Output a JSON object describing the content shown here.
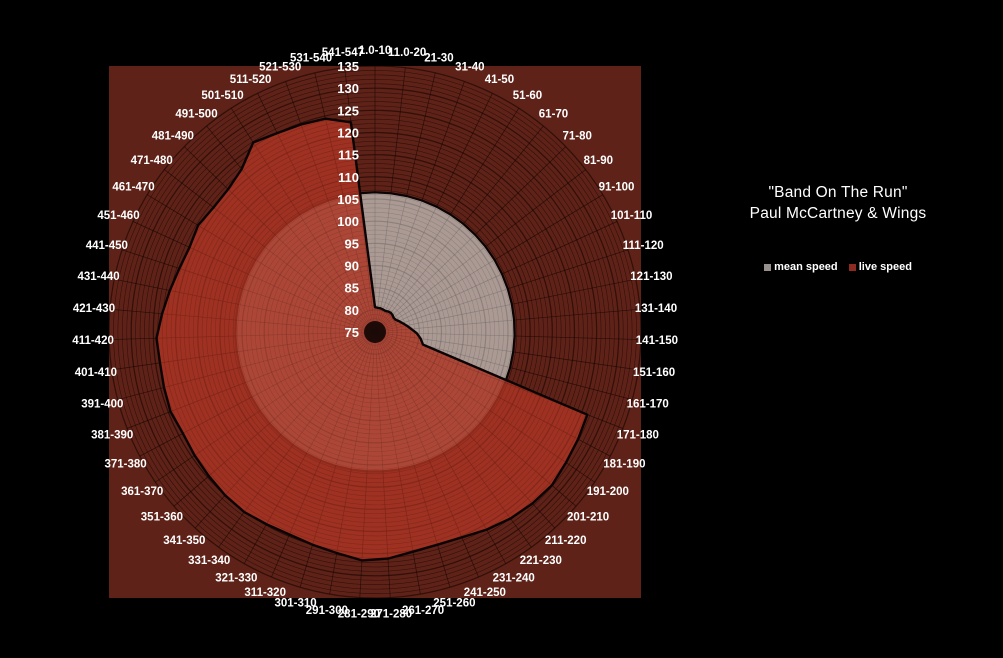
{
  "page": {
    "background": "#000000"
  },
  "title": {
    "line1": "\"Band On The Run\"",
    "line2": "Paul McCartney & Wings"
  },
  "legend": [
    {
      "label": "mean speed",
      "color": "#97908c"
    },
    {
      "label": "live speed",
      "color": "#8e2b20"
    }
  ],
  "chart_data": {
    "type": "polar-area-radar",
    "title": "\"Band On The Run\" Paul McCartney & Wings",
    "angular_axis_units": "beat ranges",
    "angular_start": "top",
    "direction": "clockwise",
    "radial_axis": {
      "min": 75,
      "max": 135,
      "tick_step": 5,
      "ticks": [
        75,
        80,
        85,
        90,
        95,
        100,
        105,
        110,
        115,
        120,
        125,
        130,
        135
      ]
    },
    "grid": {
      "rings_every_unit": true,
      "major_ring_every": 5,
      "spokes": 55
    },
    "legend_position": "right",
    "plot_bg": "#5e2218",
    "categories": [
      "1.0-10",
      "11.0-20",
      "21-30",
      "31-40",
      "41-50",
      "51-60",
      "61-70",
      "71-80",
      "81-90",
      "91-100",
      "101-110",
      "111-120",
      "121-130",
      "131-140",
      "141-150",
      "151-160",
      "161-170",
      "171-180",
      "181-190",
      "191-200",
      "201-210",
      "211-220",
      "221-230",
      "231-240",
      "241-250",
      "251-260",
      "261-270",
      "271-280",
      "281-290",
      "291-300",
      "301-310",
      "311-320",
      "321-330",
      "331-340",
      "341-350",
      "351-360",
      "361-370",
      "371-380",
      "381-390",
      "391-400",
      "401-410",
      "411-420",
      "421-430",
      "431-440",
      "441-450",
      "451-460",
      "461-470",
      "471-480",
      "481-490",
      "491-500",
      "501-510",
      "511-520",
      "521-530",
      "531-540",
      "541-547"
    ],
    "series": [
      {
        "name": "mean speed",
        "fill": "rgba(188,180,176,0.82)",
        "values": [
          106.5,
          106.5,
          106.5,
          106.5,
          106.5,
          106.5,
          106.5,
          106.5,
          106.5,
          106.5,
          106.5,
          106.5,
          106.5,
          106.5,
          106.5,
          106.5,
          106.5,
          106.5,
          106.5,
          106.5,
          106.5,
          106.5,
          106.5,
          106.5,
          106.5,
          106.5,
          106.5,
          106.5,
          106.5,
          106.5,
          106.5,
          106.5,
          106.5,
          106.5,
          106.5,
          106.5,
          106.5,
          106.5,
          106.5,
          106.5,
          106.5,
          106.5,
          106.5,
          106.5,
          106.5,
          106.5,
          106.5,
          106.5,
          106.5,
          106.5,
          106.5,
          106.5,
          106.5,
          106.5,
          106.5
        ]
      },
      {
        "name": "live speed",
        "fill": "rgba(172,52,35,0.82)",
        "values": [
          80.6,
          80.5,
          80.5,
          80.4,
          80.3,
          80.5,
          80.6,
          80.5,
          80.3,
          80.4,
          80.9,
          81.5,
          82.3,
          83.2,
          84.4,
          85.4,
          86.2,
          126.4,
          126.8,
          127.2,
          127.8,
          127.5,
          127.0,
          126.2,
          125.3,
          125.0,
          125.3,
          126.2,
          126.6,
          125.6,
          125.0,
          124.6,
          124.8,
          125.2,
          125.0,
          124.6,
          124.3,
          124.0,
          124.5,
          124.2,
          124.0,
          124.3,
          123.2,
          122.2,
          121.4,
          121.0,
          121.6,
          121.0,
          121.2,
          122.5,
          125.8,
          125.0,
          124.7,
          124.4,
          122.6
        ]
      }
    ]
  }
}
